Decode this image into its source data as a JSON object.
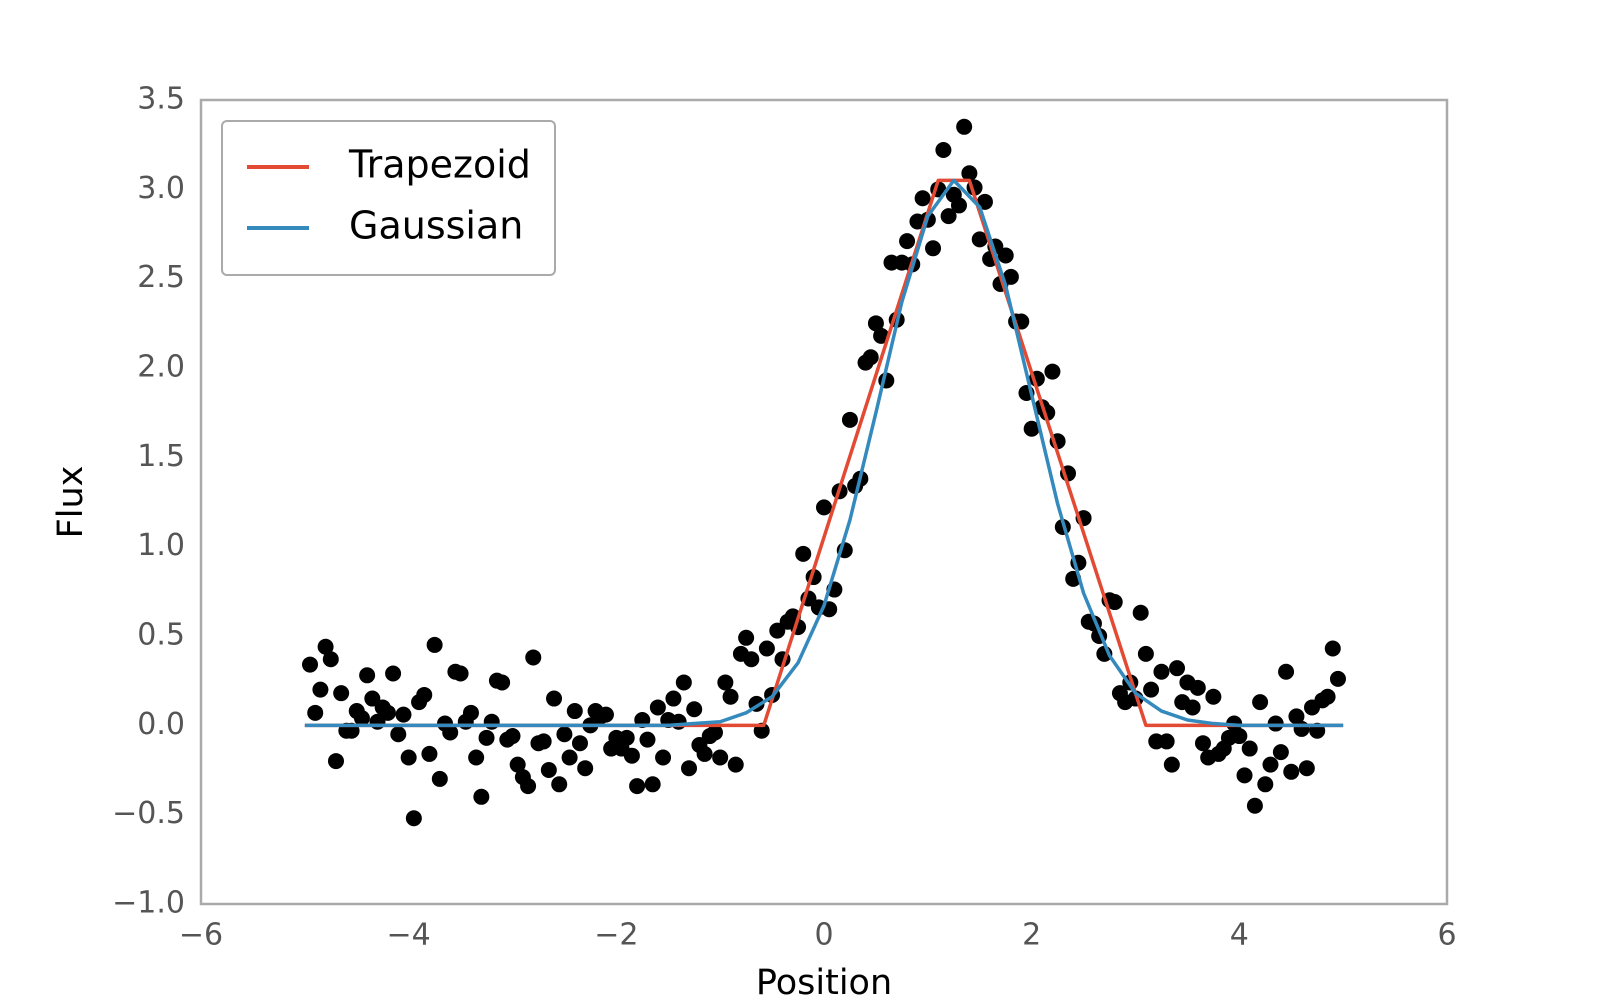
{
  "chart_data": {
    "type": "scatter",
    "xlabel": "Position",
    "ylabel": "Flux",
    "xlim": [
      -6,
      6
    ],
    "ylim": [
      -1.0,
      3.5
    ],
    "xticks": [
      {
        "value": -6,
        "label": "−6"
      },
      {
        "value": -4,
        "label": "−4"
      },
      {
        "value": -2,
        "label": "−2"
      },
      0,
      2,
      4,
      6
    ],
    "yticks": [
      {
        "value": -1.0,
        "label": "−1.0"
      },
      {
        "value": -0.5,
        "label": "−0.5"
      },
      {
        "value": 0,
        "label": "0.0"
      },
      0.5,
      {
        "value": 1,
        "label": "1.0"
      },
      1.5,
      {
        "value": 2,
        "label": "2.0"
      },
      2.5,
      {
        "value": 3,
        "label": "3.0"
      },
      3.5
    ],
    "grid": false,
    "legend": "upper left",
    "series": [
      {
        "type": "scatter",
        "color": "#000000",
        "x": [
          -4.95,
          -4.9,
          -4.85,
          -4.8,
          -4.75,
          -4.7,
          -4.65,
          -4.6,
          -4.55,
          -4.5,
          -4.45,
          -4.4,
          -4.35,
          -4.3,
          -4.25,
          -4.2,
          -4.15,
          -4.1,
          -4.05,
          -4.0,
          -3.95,
          -3.9,
          -3.85,
          -3.8,
          -3.75,
          -3.7,
          -3.65,
          -3.6,
          -3.55,
          -3.5,
          -3.45,
          -3.4,
          -3.35,
          -3.3,
          -3.25,
          -3.2,
          -3.15,
          -3.1,
          -3.05,
          -3.0,
          -2.95,
          -2.9,
          -2.85,
          -2.8,
          -2.75,
          -2.7,
          -2.65,
          -2.6,
          -2.55,
          -2.5,
          -2.45,
          -2.4,
          -2.35,
          -2.3,
          -2.25,
          -2.2,
          -2.15,
          -2.1,
          -2.05,
          -2.0,
          -1.95,
          -1.9,
          -1.85,
          -1.8,
          -1.75,
          -1.7,
          -1.65,
          -1.6,
          -1.55,
          -1.5,
          -1.45,
          -1.4,
          -1.35,
          -1.3,
          -1.25,
          -1.2,
          -1.15,
          -1.1,
          -1.05,
          -1.0,
          -0.95,
          -0.9,
          -0.85,
          -0.8,
          -0.75,
          -0.7,
          -0.65,
          -0.6,
          -0.55,
          -0.5,
          -0.45,
          -0.4,
          -0.35,
          -0.3,
          -0.25,
          -0.2,
          -0.15,
          -0.1,
          -0.05,
          0.0,
          0.05,
          0.1,
          0.15,
          0.2,
          0.25,
          0.3,
          0.35,
          0.4,
          0.45,
          0.5,
          0.55,
          0.6,
          0.65,
          0.7,
          0.75,
          0.8,
          0.85,
          0.9,
          0.95,
          1.0,
          1.05,
          1.1,
          1.15,
          1.2,
          1.25,
          1.3,
          1.35,
          1.4,
          1.45,
          1.5,
          1.55,
          1.6,
          1.65,
          1.7,
          1.75,
          1.8,
          1.85,
          1.9,
          1.95,
          2.0,
          2.05,
          2.1,
          2.15,
          2.2,
          2.25,
          2.3,
          2.35,
          2.4,
          2.45,
          2.5,
          2.55,
          2.6,
          2.65,
          2.7,
          2.75,
          2.8,
          2.85,
          2.9,
          2.95,
          3.0,
          3.05,
          3.1,
          3.15,
          3.2,
          3.25,
          3.3,
          3.35,
          3.4,
          3.45,
          3.5,
          3.55,
          3.6,
          3.65,
          3.7,
          3.75,
          3.8,
          3.85,
          3.9,
          3.95,
          4.0,
          4.05,
          4.1,
          4.15,
          4.2,
          4.25,
          4.3,
          4.35,
          4.4,
          4.45,
          4.5,
          4.55,
          4.6,
          4.65,
          4.7,
          4.75,
          4.8,
          4.85,
          4.9,
          4.95
        ],
        "values": [
          0.34,
          0.07,
          0.2,
          0.44,
          0.37,
          -0.2,
          0.18,
          -0.03,
          -0.03,
          0.08,
          0.04,
          0.28,
          0.15,
          0.02,
          0.1,
          0.07,
          0.29,
          -0.05,
          0.06,
          -0.18,
          -0.52,
          0.13,
          0.17,
          -0.16,
          0.45,
          -0.3,
          0.01,
          -0.04,
          0.3,
          0.29,
          0.02,
          0.07,
          -0.18,
          -0.4,
          -0.07,
          0.02,
          0.25,
          0.24,
          -0.08,
          -0.06,
          -0.22,
          -0.29,
          -0.34,
          0.38,
          -0.1,
          -0.09,
          -0.25,
          0.15,
          -0.33,
          -0.05,
          -0.18,
          0.08,
          -0.1,
          -0.24,
          0.0,
          0.08,
          0.05,
          0.06,
          -0.13,
          -0.07,
          -0.13,
          -0.07,
          -0.17,
          -0.34,
          0.03,
          -0.08,
          -0.33,
          0.1,
          -0.18,
          0.03,
          0.15,
          0.02,
          0.24,
          -0.24,
          0.09,
          -0.11,
          -0.16,
          -0.06,
          -0.04,
          -0.18,
          0.24,
          0.16,
          -0.22,
          0.4,
          0.49,
          0.37,
          0.12,
          -0.03,
          0.43,
          0.17,
          0.53,
          0.37,
          0.58,
          0.61,
          0.55,
          0.96,
          0.71,
          0.83,
          0.66,
          1.22,
          0.65,
          0.76,
          1.31,
          0.98,
          1.71,
          1.34,
          1.38,
          2.03,
          2.06,
          2.25,
          2.18,
          1.93,
          2.59,
          2.27,
          2.59,
          2.71,
          2.58,
          2.82,
          2.95,
          2.83,
          2.67,
          3.0,
          3.22,
          2.85,
          2.97,
          2.91,
          3.35,
          3.09,
          3.01,
          2.72,
          2.93,
          2.61,
          2.68,
          2.47,
          2.63,
          2.51,
          2.26,
          2.26,
          1.86,
          1.66,
          1.94,
          1.78,
          1.75,
          1.98,
          1.59,
          1.11,
          1.41,
          0.82,
          0.91,
          1.16,
          0.58,
          0.57,
          0.5,
          0.4,
          0.7,
          0.69,
          0.18,
          0.13,
          0.24,
          0.15,
          0.63,
          0.4,
          0.2,
          -0.09,
          0.3,
          -0.09,
          -0.22,
          0.32,
          0.13,
          0.24,
          0.1,
          0.21,
          -0.1,
          -0.18,
          0.16,
          -0.16,
          -0.13,
          -0.07,
          0.01,
          -0.06,
          -0.28,
          -0.13,
          -0.45,
          0.13,
          -0.33,
          -0.22,
          0.01,
          -0.15,
          0.3,
          -0.26,
          0.05,
          -0.02,
          -0.24,
          0.1,
          -0.03,
          0.14,
          0.16,
          0.43,
          0.26
        ]
      },
      {
        "type": "line",
        "name": "Trapezoid",
        "color": "#e24a33",
        "x": [
          -5,
          -0.58,
          1.1,
          1.4,
          3.1,
          5
        ],
        "values": [
          0,
          0,
          3.05,
          3.05,
          0,
          0
        ]
      },
      {
        "type": "line",
        "name": "Gaussian",
        "color": "#348abd",
        "x": [
          -5,
          -4.75,
          -4.5,
          -4.25,
          -4,
          -3.75,
          -3.5,
          -3.25,
          -3,
          -2.75,
          -2.5,
          -2.25,
          -2,
          -1.75,
          -1.5,
          -1.25,
          -1,
          -0.75,
          -0.5,
          -0.25,
          0,
          0.25,
          0.5,
          0.75,
          1,
          1.25,
          1.5,
          1.75,
          2,
          2.25,
          2.5,
          2.75,
          3,
          3.25,
          3.5,
          3.75,
          4,
          4.25,
          4.5,
          4.75,
          5
        ],
        "values": [
          0,
          0,
          0,
          0,
          0,
          0,
          0,
          0,
          0,
          0,
          0,
          0,
          0,
          0,
          0,
          0.01,
          0.02,
          0.07,
          0.16,
          0.35,
          0.67,
          1.15,
          1.75,
          2.37,
          2.85,
          3.05,
          2.9,
          2.46,
          1.85,
          1.24,
          0.74,
          0.39,
          0.18,
          0.08,
          0.03,
          0.01,
          0,
          0,
          0,
          0,
          0
        ]
      }
    ]
  }
}
